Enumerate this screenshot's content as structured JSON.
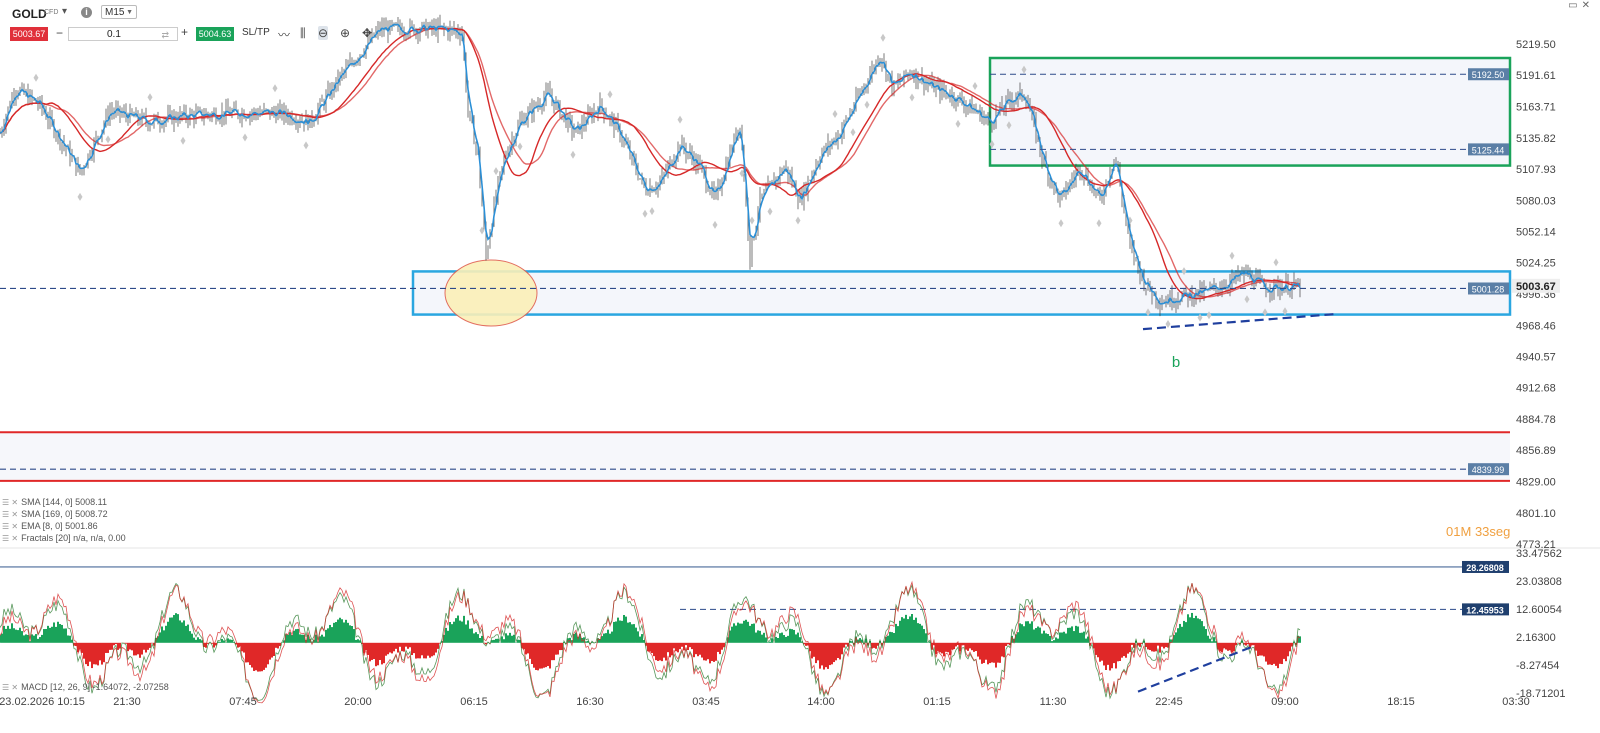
{
  "toolbar": {
    "symbol": "GOLD",
    "symbol_type": "CFD",
    "timeframe": "M15",
    "bid": "5003.67",
    "ask": "5004.63",
    "volume": "0.1",
    "sltp_label": "SL/TP",
    "icons": [
      "chart-type-icon",
      "candles-icon",
      "zoom-out-icon",
      "zoom-in-icon",
      "crosshair-icon"
    ]
  },
  "indicators": [
    "SMA [144, 0] 5008.11",
    "SMA [169, 0] 5008.72",
    "EMA [8, 0] 5001.86",
    "Fractals [20] n/a, n/a, 0.00"
  ],
  "macd_legend": "MACD [12, 26, 9] -1.64072, -2.07258",
  "countdown": {
    "minutes": "01",
    "m_label": "M",
    "seconds": "33",
    "s_label": "seg"
  },
  "annotation_b": "b",
  "chart_data": {
    "type": "candlestick",
    "price_axis": {
      "ticks": [
        "5219.50",
        "5191.61",
        "5163.71",
        "5135.82",
        "5107.93",
        "5080.03",
        "5052.14",
        "5024.25",
        "4996.36",
        "4968.46",
        "4940.57",
        "4912.68",
        "4884.78",
        "4856.89",
        "4829.00",
        "4801.10",
        "4773.21"
      ],
      "ylim": [
        4773.21,
        5233.44
      ]
    },
    "time_axis": {
      "ticks": [
        "23.02.2026 10:15",
        "21:30",
        "07:45",
        "20:00",
        "06:15",
        "16:30",
        "03:45",
        "14:00",
        "01:15",
        "11:30",
        "22:45",
        "09:00",
        "18:15",
        "03:30"
      ]
    },
    "price_labels": [
      {
        "value": 5192.5,
        "text": "5192.50",
        "style": "dashed"
      },
      {
        "value": 5125.44,
        "text": "5125.44",
        "style": "dashed"
      },
      {
        "value": 5001.28,
        "text": "5001.28",
        "style": "dashed"
      },
      {
        "value": 4839.99,
        "text": "4839.99",
        "style": "dashed"
      }
    ],
    "current_price": {
      "value": 5003.67,
      "text": "5003.67"
    },
    "zones": [
      {
        "name": "resistance",
        "color": "#1aa35a",
        "top": 5207.0,
        "bottom": 5111.0
      },
      {
        "name": "support",
        "color": "#2aa6e0",
        "top": 5016.5,
        "bottom": 4978.0
      },
      {
        "name": "lower",
        "color": "#e02828",
        "top": 4873.0,
        "bottom": 4829.5
      }
    ],
    "macd_axis": {
      "ticks": [
        "33.47562",
        "23.03808",
        "12.60054",
        "2.16300",
        "-8.27454",
        "-18.71201"
      ],
      "ylim": [
        -18.71201,
        34.5
      ],
      "labels": [
        {
          "value": 28.26808,
          "text": "28.26808",
          "style": "solid"
        },
        {
          "value": 12.45953,
          "text": "12.45953",
          "style": "dashed"
        }
      ]
    },
    "colors": {
      "sma144": "#d62828",
      "sma169": "#d62828",
      "ema8": "#2b8fd6",
      "candle": "#3a3a3a",
      "hist_up": "#1aa35a",
      "hist_down": "#e02828",
      "axis_label_bg": "#5b7fa6",
      "macd_label_bg": "#1f3f6e"
    }
  }
}
